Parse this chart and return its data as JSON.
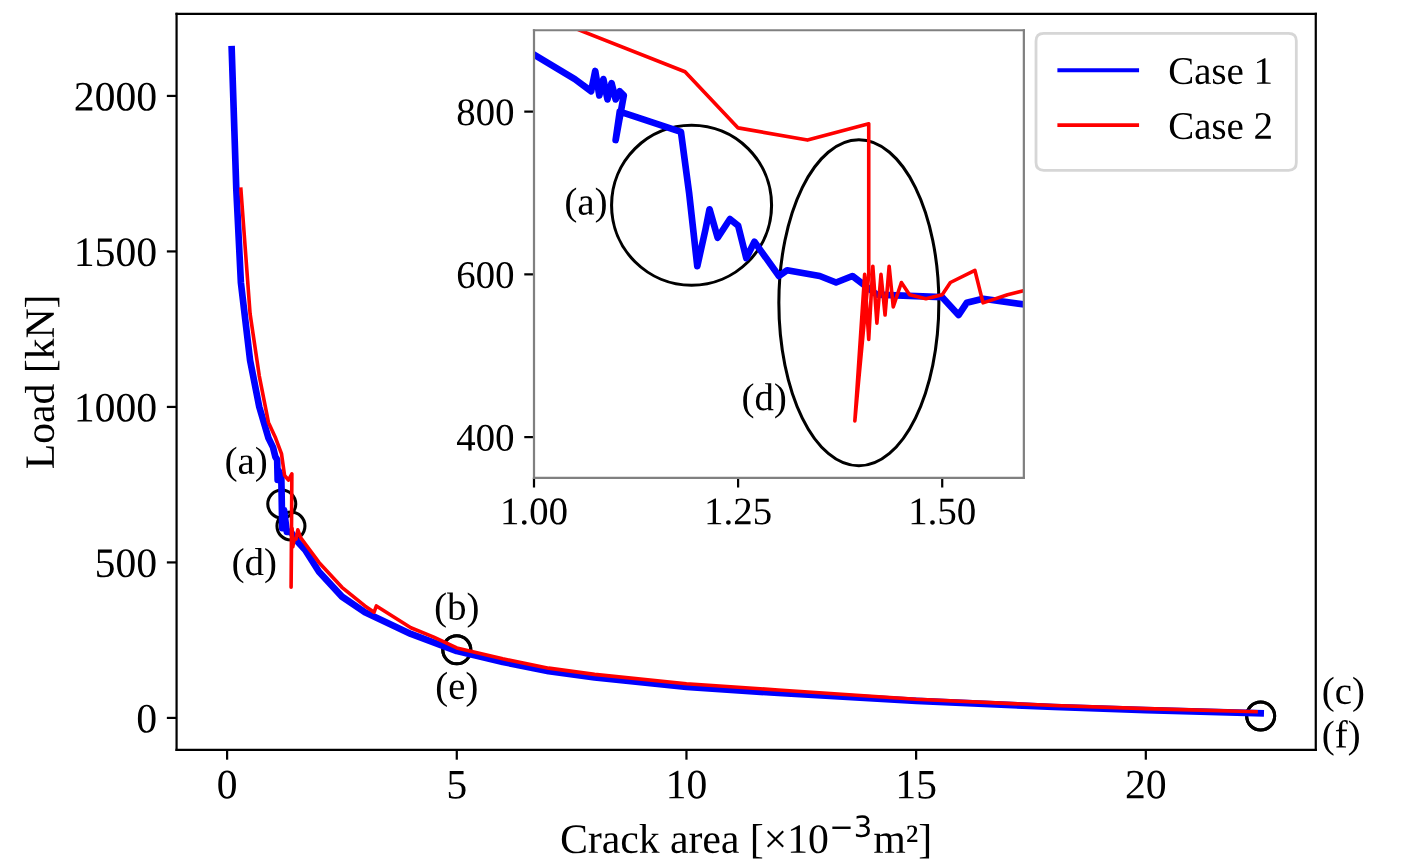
{
  "chart_data": [
    {
      "type": "line",
      "xlabel": "Crack area [×10$^{−3}$m²]",
      "ylabel": "Load [kN]",
      "xlim": [
        -1.1,
        23.7
      ],
      "ylim": [
        -103,
        2264
      ],
      "xticks": [
        0,
        5,
        10,
        15,
        20
      ],
      "yticks": [
        0,
        500,
        1000,
        1500,
        2000
      ],
      "grid": false,
      "legend": "top right",
      "marker": "none",
      "line_style": "solid",
      "series": [
        {
          "name": "Case 1",
          "color": "#0000ff",
          "x": [
            0.1,
            0.2,
            0.3,
            0.5,
            0.7,
            0.9,
            1.0,
            1.05,
            1.09,
            1.1,
            1.12,
            1.18,
            1.2,
            1.24,
            1.3,
            1.39,
            1.5,
            1.7,
            2,
            2.5,
            3,
            4,
            5,
            6,
            7,
            8,
            10,
            12,
            15,
            18,
            20,
            22.5
          ],
          "values": [
            2150,
            1700,
            1400,
            1150,
            1000,
            900,
            870,
            840,
            830,
            765,
            795,
            775,
            610,
            668,
            598,
            598,
            572,
            540,
            470,
            390,
            340,
            270,
            215,
            180,
            150,
            130,
            100,
            80,
            55,
            35,
            25,
            15
          ]
        },
        {
          "name": "Case 2",
          "color": "#ff0000",
          "x": [
            0.3,
            0.5,
            0.7,
            0.9,
            1.056,
            1.185,
            1.25,
            1.335,
            1.41,
            1.393,
            1.405,
            1.415,
            1.43,
            1.46,
            1.5,
            1.54,
            1.6,
            1.7,
            2,
            2.5,
            3,
            3.2,
            3.25,
            4,
            4.5,
            5,
            6,
            7,
            8,
            10,
            12,
            15,
            18,
            20,
            22.4
          ],
          "values": [
            1700,
            1300,
            1100,
            950,
            900,
            849,
            780,
            765,
            785,
            420,
            600,
            610,
            550,
            575,
            575,
            605,
            580,
            560,
            500,
            420,
            360,
            340,
            360,
            290,
            260,
            225,
            190,
            160,
            140,
            110,
            90,
            60,
            40,
            30,
            20
          ]
        }
      ],
      "annotations": [
        {
          "text": "(a)",
          "x": 1.19,
          "y": 688
        },
        {
          "text": "(d)",
          "x": 1.39,
          "y": 617
        },
        {
          "text": "(b)",
          "x": 5.0,
          "y": 219
        },
        {
          "text": "(e)",
          "x": 5.0,
          "y": 219
        },
        {
          "text": "(c)",
          "x": 22.5,
          "y": 6
        },
        {
          "text": "(f)",
          "x": 22.5,
          "y": 6
        }
      ]
    },
    {
      "type": "line",
      "xlim": [
        1.0,
        1.6
      ],
      "ylim": [
        350,
        900
      ],
      "xticks": [
        {
          "value": 1.0,
          "label": "1.00"
        },
        {
          "value": 1.25,
          "label": "1.25"
        },
        {
          "value": 1.5,
          "label": "1.50"
        }
      ],
      "yticks": [
        400,
        600,
        800
      ],
      "grid": false,
      "legend": false,
      "marker": "none",
      "line_style": "solid",
      "series": [
        {
          "color": "#0000ff",
          "x": [
            1.0,
            1.05,
            1.07,
            1.075,
            1.08,
            1.085,
            1.09,
            1.095,
            1.1,
            1.105,
            1.11,
            1.1,
            1.105,
            1.12,
            1.18,
            1.19,
            1.2,
            1.21,
            1.215,
            1.225,
            1.24,
            1.25,
            1.26,
            1.27,
            1.3,
            1.31,
            1.35,
            1.37,
            1.39,
            1.42,
            1.5,
            1.52,
            1.53,
            1.55,
            1.6
          ],
          "values": [
            870,
            840,
            825,
            850,
            820,
            840,
            815,
            835,
            815,
            825,
            820,
            765,
            800,
            795,
            775,
            700,
            610,
            655,
            680,
            645,
            668,
            660,
            620,
            640,
            598,
            605,
            598,
            590,
            598,
            575,
            572,
            550,
            565,
            570,
            563
          ]
        },
        {
          "color": "#ff0000",
          "x": [
            1.056,
            1.185,
            1.25,
            1.335,
            1.41,
            1.41,
            1.393,
            1.405,
            1.41,
            1.415,
            1.42,
            1.425,
            1.43,
            1.435,
            1.44,
            1.45,
            1.46,
            1.48,
            1.5,
            1.51,
            1.54,
            1.55,
            1.58,
            1.6
          ],
          "values": [
            900,
            849,
            780,
            765,
            785,
            600,
            420,
            600,
            520,
            610,
            540,
            600,
            550,
            610,
            560,
            590,
            575,
            570,
            575,
            590,
            605,
            565,
            575,
            580
          ]
        }
      ],
      "annotations": [
        {
          "text": "(a)",
          "x": 1.193,
          "y": 685
        },
        {
          "text": "(d)",
          "x": 1.393,
          "y": 420
        }
      ]
    }
  ]
}
